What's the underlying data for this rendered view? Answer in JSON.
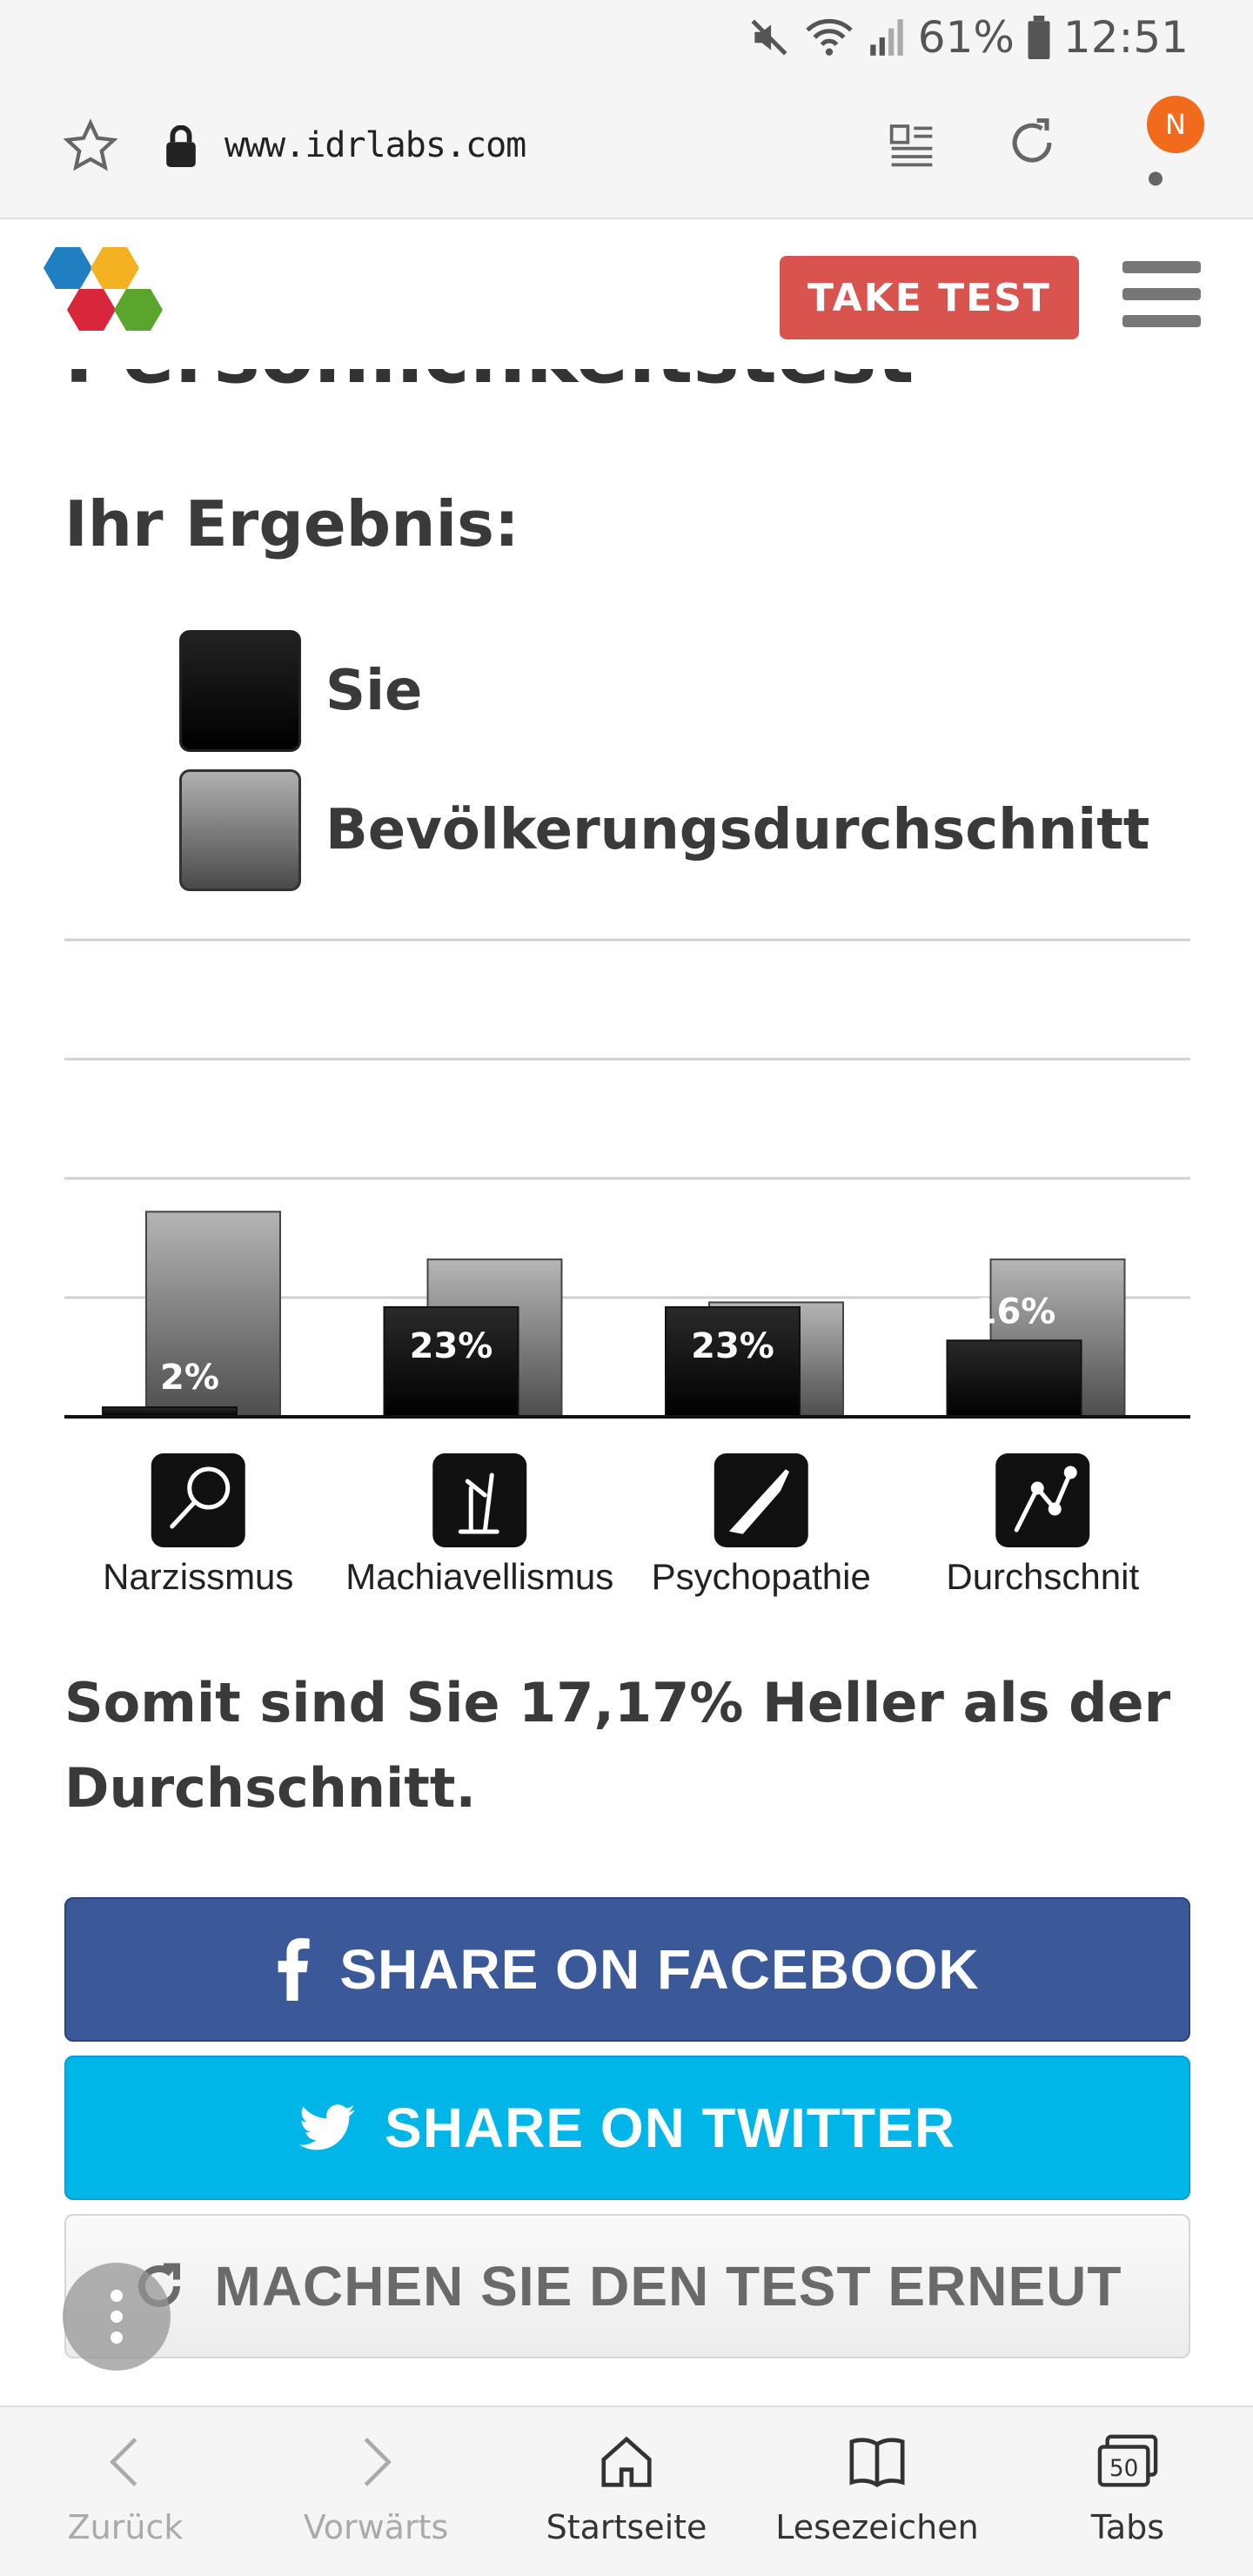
{
  "status_bar": {
    "battery": "61%",
    "time": "12:51"
  },
  "browser": {
    "url": "www.idrlabs.com",
    "notification_badge": "N"
  },
  "site": {
    "take_test_label": "TAKE TEST",
    "title_partial": "Persönlichkeitstest"
  },
  "result": {
    "heading": "Ihr Ergebnis:",
    "legend": [
      {
        "label": "Sie"
      },
      {
        "label": "Bevölkerungsdurchschnitt"
      }
    ],
    "summary": "Somit sind Sie 17,17% Heller als der Durchschnitt."
  },
  "chart_data": {
    "type": "bar",
    "categories": [
      "Narzissmus",
      "Machiavellismus",
      "Psychopathie",
      "Durchschnit"
    ],
    "series": [
      {
        "name": "Sie",
        "values": [
          2,
          23,
          23,
          16
        ],
        "labels": [
          "2%",
          "23%",
          "23%",
          "16%"
        ],
        "color": "#000000"
      },
      {
        "name": "Bevölkerungsdurchschnitt",
        "values": [
          43,
          33,
          24,
          33
        ],
        "color": "#808080"
      }
    ],
    "ylim": [
      0,
      100
    ],
    "icons": [
      "magnifier-icon",
      "crossed-fingers-icon",
      "knife-icon",
      "graph-icon"
    ],
    "grid": true
  },
  "actions": {
    "facebook": "SHARE ON FACEBOOK",
    "twitter": "SHARE ON TWITTER",
    "retake": "MACHEN SIE DEN TEST ERNEUT"
  },
  "bottom_nav": [
    {
      "label": "Zurück",
      "icon": "back-icon"
    },
    {
      "label": "Vorwärts",
      "icon": "forward-icon"
    },
    {
      "label": "Startseite",
      "icon": "home-icon"
    },
    {
      "label": "Lesezeichen",
      "icon": "bookmarks-icon"
    },
    {
      "label": "Tabs",
      "icon": "tabs-icon",
      "count": "50"
    }
  ]
}
